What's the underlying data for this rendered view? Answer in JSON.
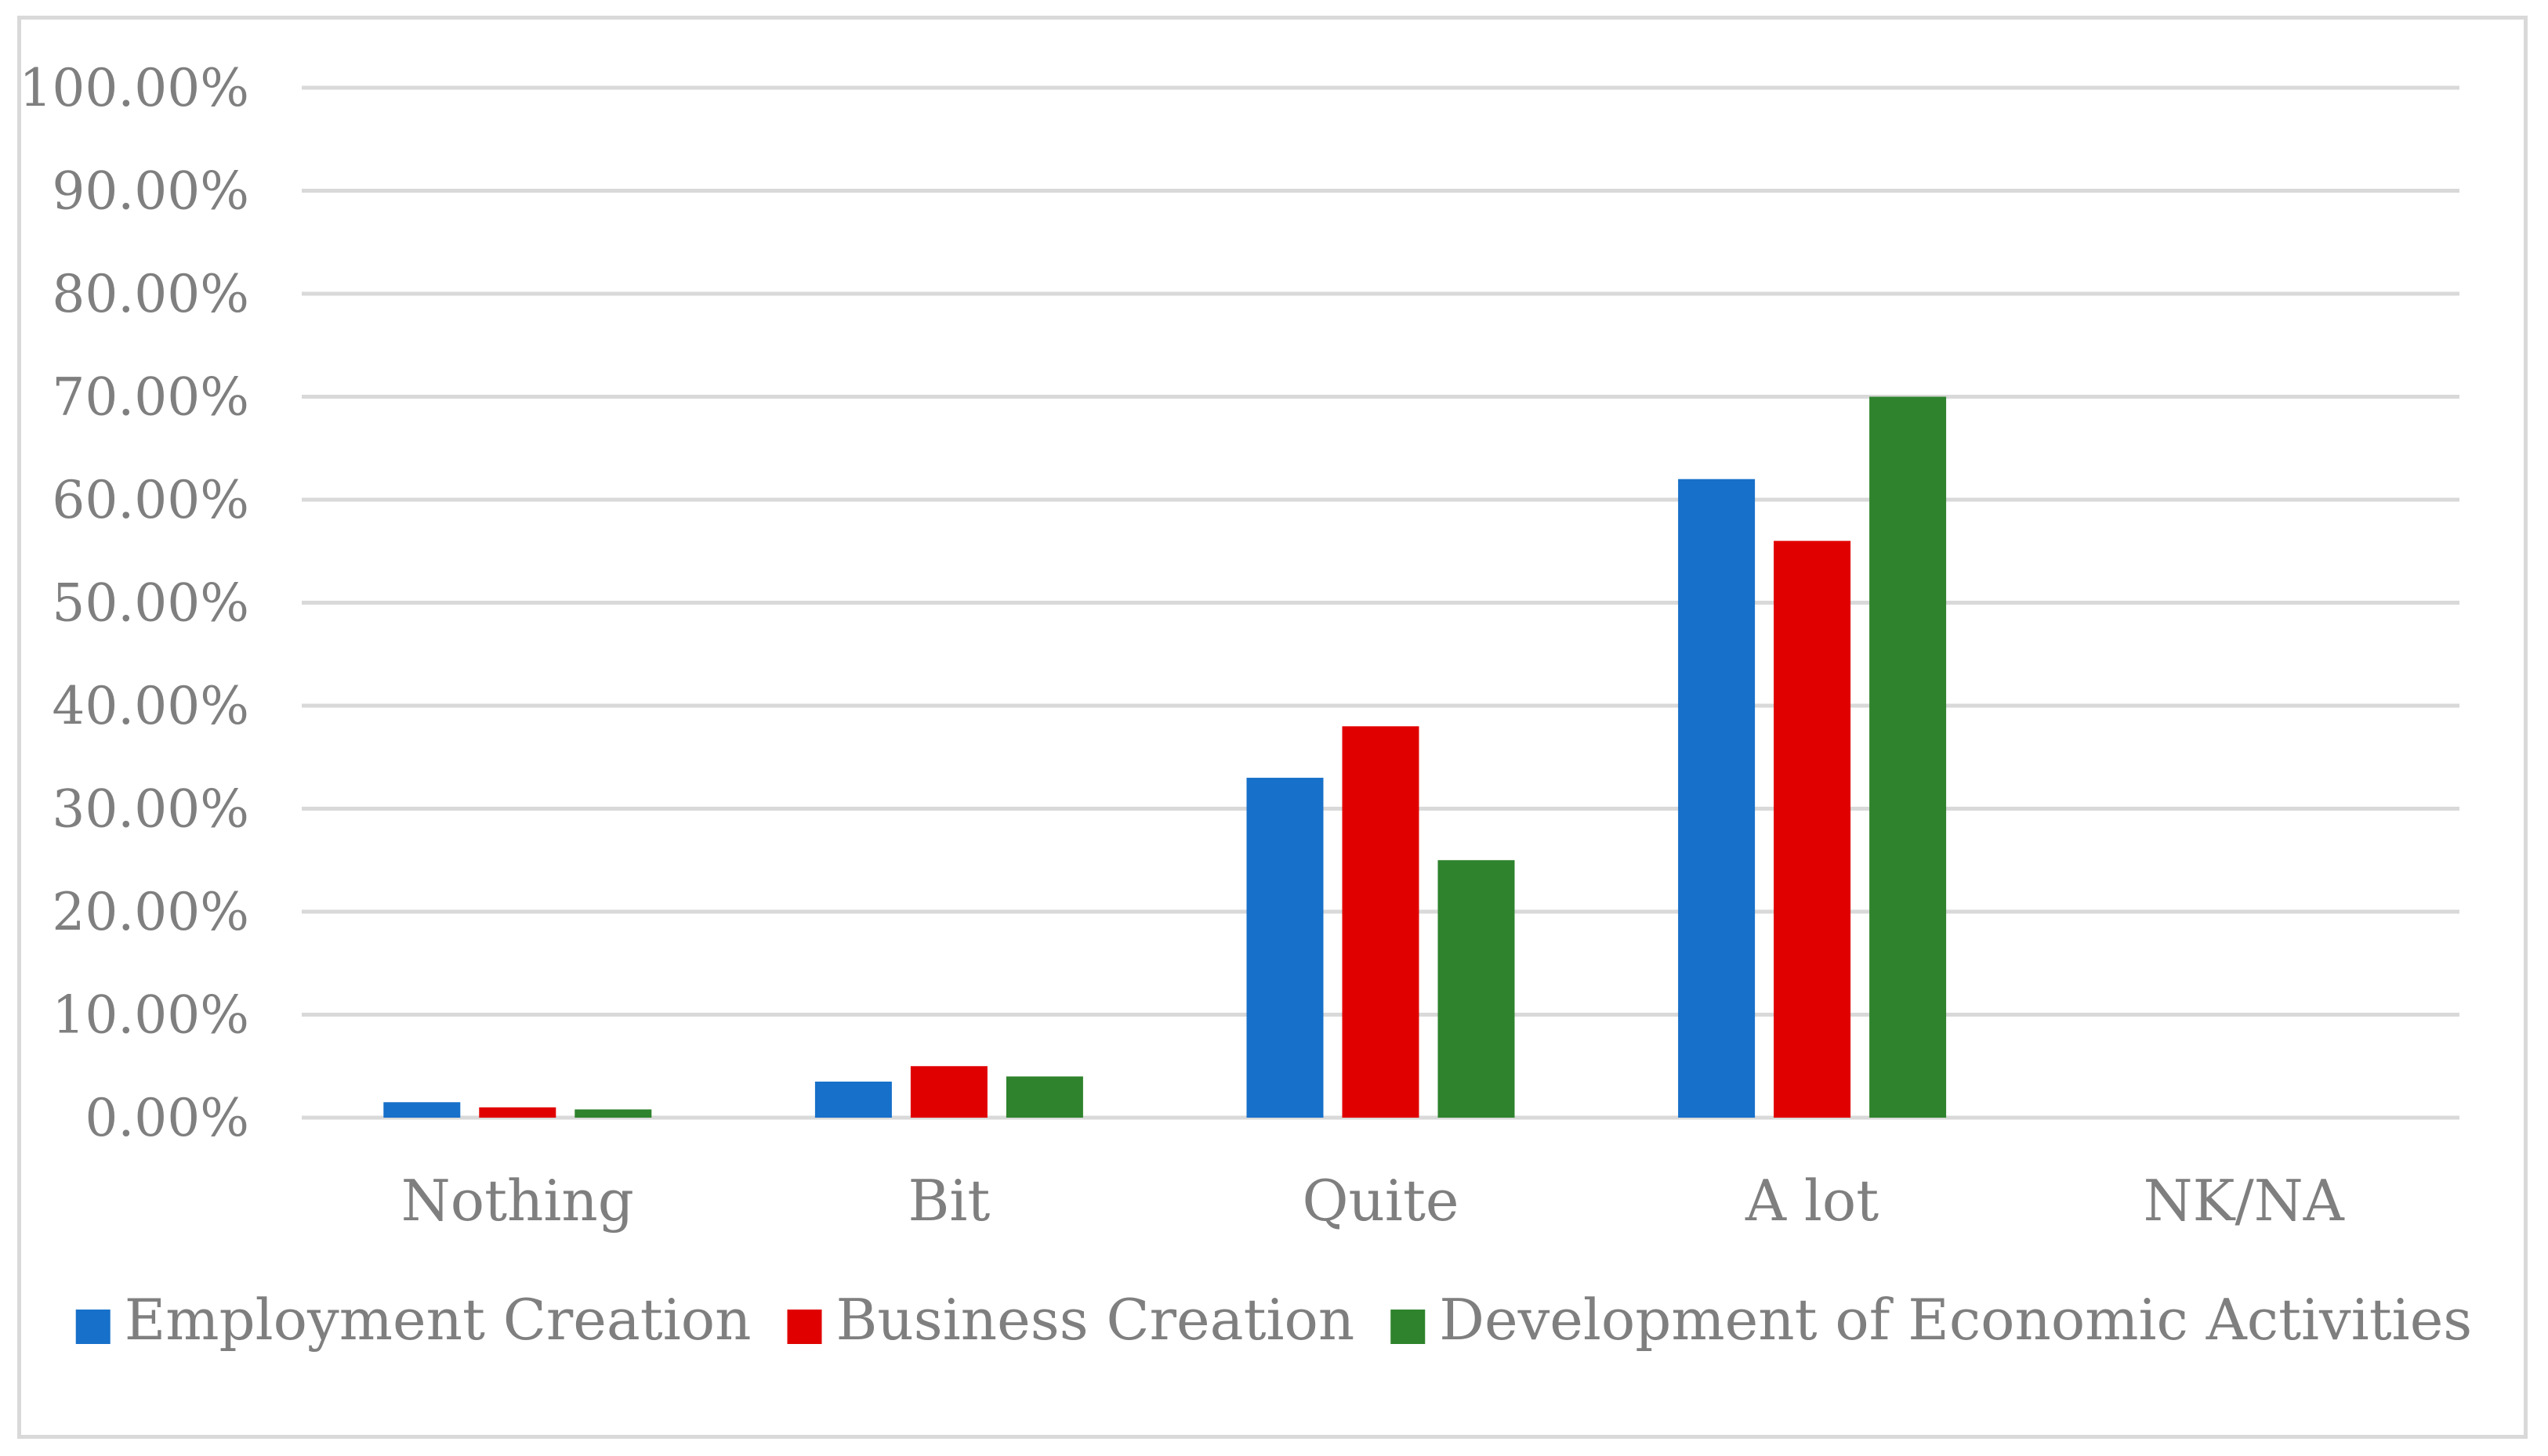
{
  "chart_data": {
    "type": "bar",
    "title": "",
    "xlabel": "",
    "ylabel": "",
    "categories": [
      "Nothing",
      "Bit",
      "Quite",
      "A lot",
      "NK/NA"
    ],
    "series": [
      {
        "name": "Employment Creation",
        "color": "#1770c9",
        "values": [
          1.5,
          3.5,
          33,
          62,
          0
        ]
      },
      {
        "name": "Business Creation",
        "color": "#e00000",
        "values": [
          1.0,
          5.0,
          38,
          56,
          0
        ]
      },
      {
        "name": "Development of Economic Activities",
        "color": "#2e832c",
        "values": [
          0.8,
          4.0,
          25,
          70,
          0
        ]
      }
    ],
    "ylim": [
      0,
      100
    ],
    "yticks": [
      0,
      10,
      20,
      30,
      40,
      50,
      60,
      70,
      80,
      90,
      100
    ],
    "ytick_labels": [
      "0.00%",
      "10.00%",
      "20.00%",
      "30.00%",
      "40.00%",
      "50.00%",
      "60.00%",
      "70.00%",
      "80.00%",
      "90.00%",
      "100.00%"
    ],
    "grid": true,
    "gridline_color": "#d9d9d9",
    "legend_position": "bottom"
  }
}
